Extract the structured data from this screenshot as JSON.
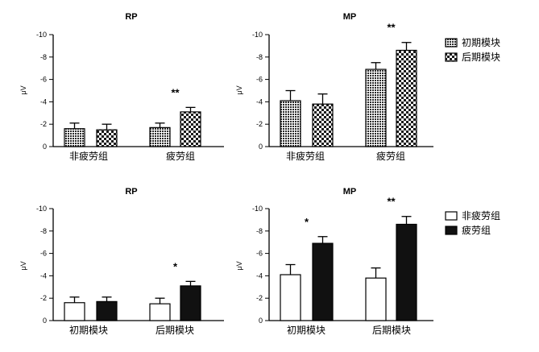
{
  "chart_data": [
    {
      "type": "bar",
      "title": "RP",
      "ylabel": "μV",
      "ylim": [
        0,
        -10
      ],
      "yticks": [
        "-10",
        "-8",
        "-6",
        "-4",
        "-2",
        "0"
      ],
      "categories": [
        "非疲劳组",
        "疲劳组"
      ],
      "series": [
        {
          "name": "初期模块",
          "pattern": "dense",
          "values": [
            -1.6,
            -1.7
          ],
          "errors": [
            0.5,
            0.4
          ]
        },
        {
          "name": "后期模块",
          "pattern": "checker",
          "values": [
            -1.5,
            -3.1
          ],
          "errors": [
            0.5,
            0.4
          ]
        }
      ],
      "significance": [
        "",
        "**"
      ],
      "legend": "none"
    },
    {
      "type": "bar",
      "title": "MP",
      "ylabel": "μV",
      "ylim": [
        0,
        -10
      ],
      "yticks": [
        "-10",
        "-8",
        "-6",
        "-4",
        "-2",
        "0"
      ],
      "categories": [
        "非疲劳组",
        "疲劳组"
      ],
      "series": [
        {
          "name": "初期模块",
          "pattern": "dense",
          "values": [
            -4.1,
            -6.9
          ],
          "errors": [
            0.9,
            0.6
          ]
        },
        {
          "name": "后期模块",
          "pattern": "checker",
          "values": [
            -3.8,
            -8.6
          ],
          "errors": [
            0.9,
            0.7
          ]
        }
      ],
      "significance": [
        "",
        "**"
      ],
      "legend": "right"
    },
    {
      "type": "bar",
      "title": "RP",
      "ylabel": "μV",
      "ylim": [
        0,
        -10
      ],
      "yticks": [
        "-10",
        "-8",
        "-6",
        "-4",
        "-2",
        "0"
      ],
      "categories": [
        "初期模块",
        "后期模块"
      ],
      "series": [
        {
          "name": "非疲劳组",
          "pattern": "white",
          "values": [
            -1.6,
            -1.5
          ],
          "errors": [
            0.5,
            0.5
          ]
        },
        {
          "name": "疲劳组",
          "pattern": "black",
          "values": [
            -1.7,
            -3.1
          ],
          "errors": [
            0.4,
            0.4
          ]
        }
      ],
      "significance": [
        "",
        "*"
      ],
      "legend": "none"
    },
    {
      "type": "bar",
      "title": "MP",
      "ylabel": "μV",
      "ylim": [
        0,
        -10
      ],
      "yticks": [
        "-10",
        "-8",
        "-6",
        "-4",
        "-2",
        "0"
      ],
      "categories": [
        "初期模块",
        "后期模块"
      ],
      "series": [
        {
          "name": "非疲劳组",
          "pattern": "white",
          "values": [
            -4.1,
            -3.8
          ],
          "errors": [
            0.9,
            0.9
          ]
        },
        {
          "name": "疲劳组",
          "pattern": "black",
          "values": [
            -6.9,
            -8.6
          ],
          "errors": [
            0.6,
            0.7
          ]
        }
      ],
      "significance": [
        "*",
        "**"
      ],
      "legend": "right"
    }
  ],
  "colors": {
    "axis": "#000000",
    "bar_fill_black": "#111111",
    "pattern_stroke": "#222222"
  }
}
